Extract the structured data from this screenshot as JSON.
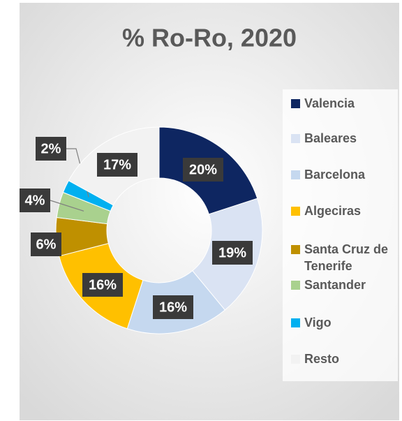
{
  "chart_data": {
    "type": "donut",
    "title": "% Ro-Ro, 2020",
    "categories": [
      "Valencia",
      "Baleares",
      "Barcelona",
      "Algeciras",
      "Santa Cruz de Tenerife",
      "Santander",
      "Vigo",
      "Resto"
    ],
    "values": [
      20,
      19,
      16,
      16,
      6,
      4,
      2,
      17
    ],
    "value_labels": [
      "20%",
      "19%",
      "16%",
      "16%",
      "6%",
      "4%",
      "2%",
      "17%"
    ],
    "colors": [
      "#0e2661",
      "#dae3f3",
      "#c5d8ef",
      "#ffc000",
      "#bf9000",
      "#a9d18e",
      "#00b0f0",
      "#f2f2f2"
    ],
    "legend": "right"
  }
}
